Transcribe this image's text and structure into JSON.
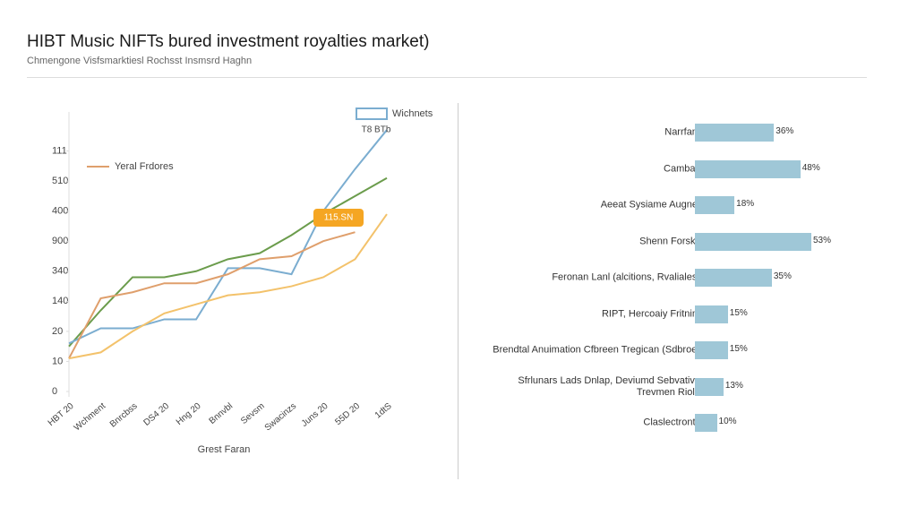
{
  "chart_data": [
    {
      "type": "line",
      "title": "HIBT Music NIFTs bured investment royalties market)",
      "subtitle": "Chmengone Visfsmarktiesl Rochsst Insmsrd Haghn",
      "x_label": "Grest Faran",
      "x": [
        0,
        10,
        20,
        30,
        40,
        50,
        60,
        70,
        80,
        90,
        100
      ],
      "xlim": [
        0,
        100
      ],
      "xticks": [
        {
          "value": 0,
          "label": "HBT 20"
        },
        {
          "value": 10,
          "label": "Wchment"
        },
        {
          "value": 20,
          "label": "Bnrcbss"
        },
        {
          "value": 30,
          "label": "DS4 20"
        },
        {
          "value": 40,
          "label": "Hng 20"
        },
        {
          "value": 50,
          "label": "Bnnvbl"
        },
        {
          "value": 60,
          "label": "Sevsm"
        },
        {
          "value": 70,
          "label": "Swacinzs"
        },
        {
          "value": 80,
          "label": "Juns 20"
        },
        {
          "value": 90,
          "label": "55D 20"
        },
        {
          "value": 100,
          "label": "1dtS"
        }
      ],
      "ylim": [
        0,
        9
      ],
      "yticks": [
        {
          "value": 0,
          "label": "0"
        },
        {
          "value": 1,
          "label": "10"
        },
        {
          "value": 2,
          "label": "20"
        },
        {
          "value": 3,
          "label": "140"
        },
        {
          "value": 4,
          "label": "340"
        },
        {
          "value": 5,
          "label": "900"
        },
        {
          "value": 6,
          "label": "400"
        },
        {
          "value": 7,
          "label": "510"
        },
        {
          "value": 8,
          "label": "111"
        }
      ],
      "series": [
        {
          "color": "#6b9c4c",
          "values": [
            1.5,
            2.7,
            3.8,
            3.8,
            4.0,
            4.4,
            4.6,
            5.2,
            5.9,
            6.5,
            7.1
          ]
        },
        {
          "name": "Wichnets",
          "color": "#7badd0",
          "values": [
            1.6,
            2.1,
            2.1,
            2.4,
            2.4,
            4.1,
            4.1,
            3.9,
            6.0,
            7.4,
            8.7
          ]
        },
        {
          "name": "Yeral Frdores",
          "color": "#df9f6c",
          "values": [
            1.1,
            3.1,
            3.3,
            3.6,
            3.6,
            3.9,
            4.4,
            4.5,
            5.0,
            5.3,
            null
          ]
        },
        {
          "color": "#f3c26b",
          "values": [
            1.1,
            1.3,
            2.0,
            2.6,
            2.9,
            3.2,
            3.3,
            3.5,
            3.8,
            4.4,
            5.9
          ]
        }
      ],
      "annotations": [
        "115.SN",
        "T8 BTb"
      ]
    },
    {
      "type": "hbar",
      "categories": [
        "Narrfant",
        "Cambay",
        "Aeeat Sysiame Augnet",
        "Shenn Forsky",
        "Feronan Lanl (alcitions, Rvaliales)",
        "RIPT, Hercoaiy Fritnim",
        "Brendtal Anuimation Cfbreen Tregican (Sdbroe)",
        "Sfrlunars Lads Dnlap, Deviumd Sebvative Trevmen Riole",
        "Claslectronts"
      ],
      "values": [
        36,
        48,
        18,
        53,
        35,
        15,
        15,
        13,
        10
      ],
      "value_labels": [
        "36%",
        "48%",
        "18%",
        "53%",
        "35%",
        "15%",
        "15%",
        "13%",
        "10%"
      ],
      "color": "#9fc7d7"
    }
  ]
}
